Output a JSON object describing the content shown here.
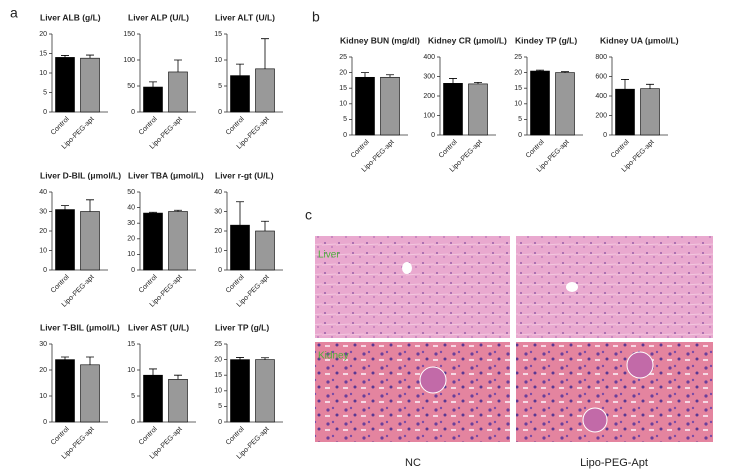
{
  "chart_data": [
    {
      "type": "bar",
      "title": "Liver ALB (g/L)",
      "categories": [
        "Control",
        "Lipo-PEG-apt"
      ],
      "values": [
        14,
        13.8
      ],
      "errors": [
        0.5,
        0.8
      ],
      "colors": [
        "#000000",
        "#999999"
      ],
      "ylim": [
        0,
        20
      ],
      "yticks": [
        0,
        5,
        10,
        15,
        20
      ]
    },
    {
      "type": "bar",
      "title": "Liver ALP (U/L)",
      "categories": [
        "Control",
        "Lipo-PEG-apt"
      ],
      "values": [
        48,
        77
      ],
      "errors": [
        10,
        23
      ],
      "colors": [
        "#000000",
        "#999999"
      ],
      "ylim": [
        0,
        150
      ],
      "yticks": [
        0,
        50,
        100,
        150
      ]
    },
    {
      "type": "bar",
      "title": "Liver ALT (U/L)",
      "categories": [
        "Control",
        "Lipo-PEG-apt"
      ],
      "values": [
        7,
        8.3
      ],
      "errors": [
        2.2,
        5.8
      ],
      "colors": [
        "#000000",
        "#999999"
      ],
      "ylim": [
        0,
        15
      ],
      "yticks": [
        0,
        5,
        10,
        15
      ]
    },
    {
      "type": "bar",
      "title": "Liver D-BIL (μmol/L)",
      "categories": [
        "Control",
        "Lipo-PEG-apt"
      ],
      "values": [
        31,
        30
      ],
      "errors": [
        2,
        6
      ],
      "colors": [
        "#000000",
        "#999999"
      ],
      "ylim": [
        0,
        40
      ],
      "yticks": [
        0,
        10,
        20,
        30,
        40
      ]
    },
    {
      "type": "bar",
      "title": "Liver TBA (μmol/L)",
      "categories": [
        "Control",
        "Lipo-PEG-apt"
      ],
      "values": [
        36.5,
        37.5
      ],
      "errors": [
        0.5,
        0.8
      ],
      "colors": [
        "#000000",
        "#999999"
      ],
      "ylim": [
        0,
        50
      ],
      "yticks": [
        0,
        10,
        20,
        30,
        40,
        50
      ]
    },
    {
      "type": "bar",
      "title": "Liver r-gt (U/L)",
      "categories": [
        "Control",
        "Lipo-PEG-apt"
      ],
      "values": [
        23,
        20
      ],
      "errors": [
        12,
        5
      ],
      "colors": [
        "#000000",
        "#999999"
      ],
      "ylim": [
        0,
        40
      ],
      "yticks": [
        0,
        10,
        20,
        30,
        40
      ]
    },
    {
      "type": "bar",
      "title": "Liver T-BIL (μmol/L)",
      "categories": [
        "Control",
        "Lipo-PEG-apt"
      ],
      "values": [
        24,
        22
      ],
      "errors": [
        1,
        3
      ],
      "colors": [
        "#000000",
        "#999999"
      ],
      "ylim": [
        0,
        30
      ],
      "yticks": [
        0,
        10,
        20,
        30
      ]
    },
    {
      "type": "bar",
      "title": "Liver AST (U/L)",
      "categories": [
        "Control",
        "Lipo-PEG-apt"
      ],
      "values": [
        9,
        8.2
      ],
      "errors": [
        1.2,
        0.8
      ],
      "colors": [
        "#000000",
        "#999999"
      ],
      "ylim": [
        0,
        15
      ],
      "yticks": [
        0,
        5,
        10,
        15
      ]
    },
    {
      "type": "bar",
      "title": "Liver TP (g/L)",
      "categories": [
        "Control",
        "Lipo-PEG-apt"
      ],
      "values": [
        20,
        20
      ],
      "errors": [
        0.7,
        0.6
      ],
      "colors": [
        "#000000",
        "#999999"
      ],
      "ylim": [
        0,
        25
      ],
      "yticks": [
        0,
        5,
        10,
        15,
        20,
        25
      ]
    },
    {
      "type": "bar",
      "title": "Kidney BUN (mg/dl)",
      "categories": [
        "Control",
        "Lipo-PEG-apt"
      ],
      "values": [
        18.5,
        18.5
      ],
      "errors": [
        1.5,
        0.8
      ],
      "colors": [
        "#000000",
        "#999999"
      ],
      "ylim": [
        0,
        25
      ],
      "yticks": [
        0,
        5,
        10,
        15,
        20,
        25
      ]
    },
    {
      "type": "bar",
      "title": "Kidney CR (μmol/L)",
      "categories": [
        "Control",
        "Lipo-PEG-apt"
      ],
      "values": [
        265,
        262
      ],
      "errors": [
        25,
        8
      ],
      "colors": [
        "#000000",
        "#999999"
      ],
      "ylim": [
        0,
        400
      ],
      "yticks": [
        0,
        100,
        200,
        300,
        400
      ]
    },
    {
      "type": "bar",
      "title": "Kindey TP (g/L)",
      "categories": [
        "Control",
        "Lipo-PEG-apt"
      ],
      "values": [
        20.5,
        20
      ],
      "errors": [
        0.3,
        0.3
      ],
      "colors": [
        "#000000",
        "#999999"
      ],
      "ylim": [
        0,
        25
      ],
      "yticks": [
        0,
        5,
        10,
        15,
        20,
        25
      ]
    },
    {
      "type": "bar",
      "title": "Kidney UA (μmol/L)",
      "categories": [
        "Control",
        "Lipo-PEG-apt"
      ],
      "values": [
        470,
        475
      ],
      "errors": [
        100,
        45
      ],
      "colors": [
        "#000000",
        "#999999"
      ],
      "ylim": [
        0,
        800
      ],
      "yticks": [
        0,
        200,
        400,
        600,
        800
      ]
    }
  ],
  "panels": [
    "a",
    "b",
    "c"
  ],
  "histology": {
    "tissues": [
      "Liver",
      "Kidney"
    ],
    "groups": [
      "NC",
      "Lipo-PEG-Apt"
    ]
  }
}
